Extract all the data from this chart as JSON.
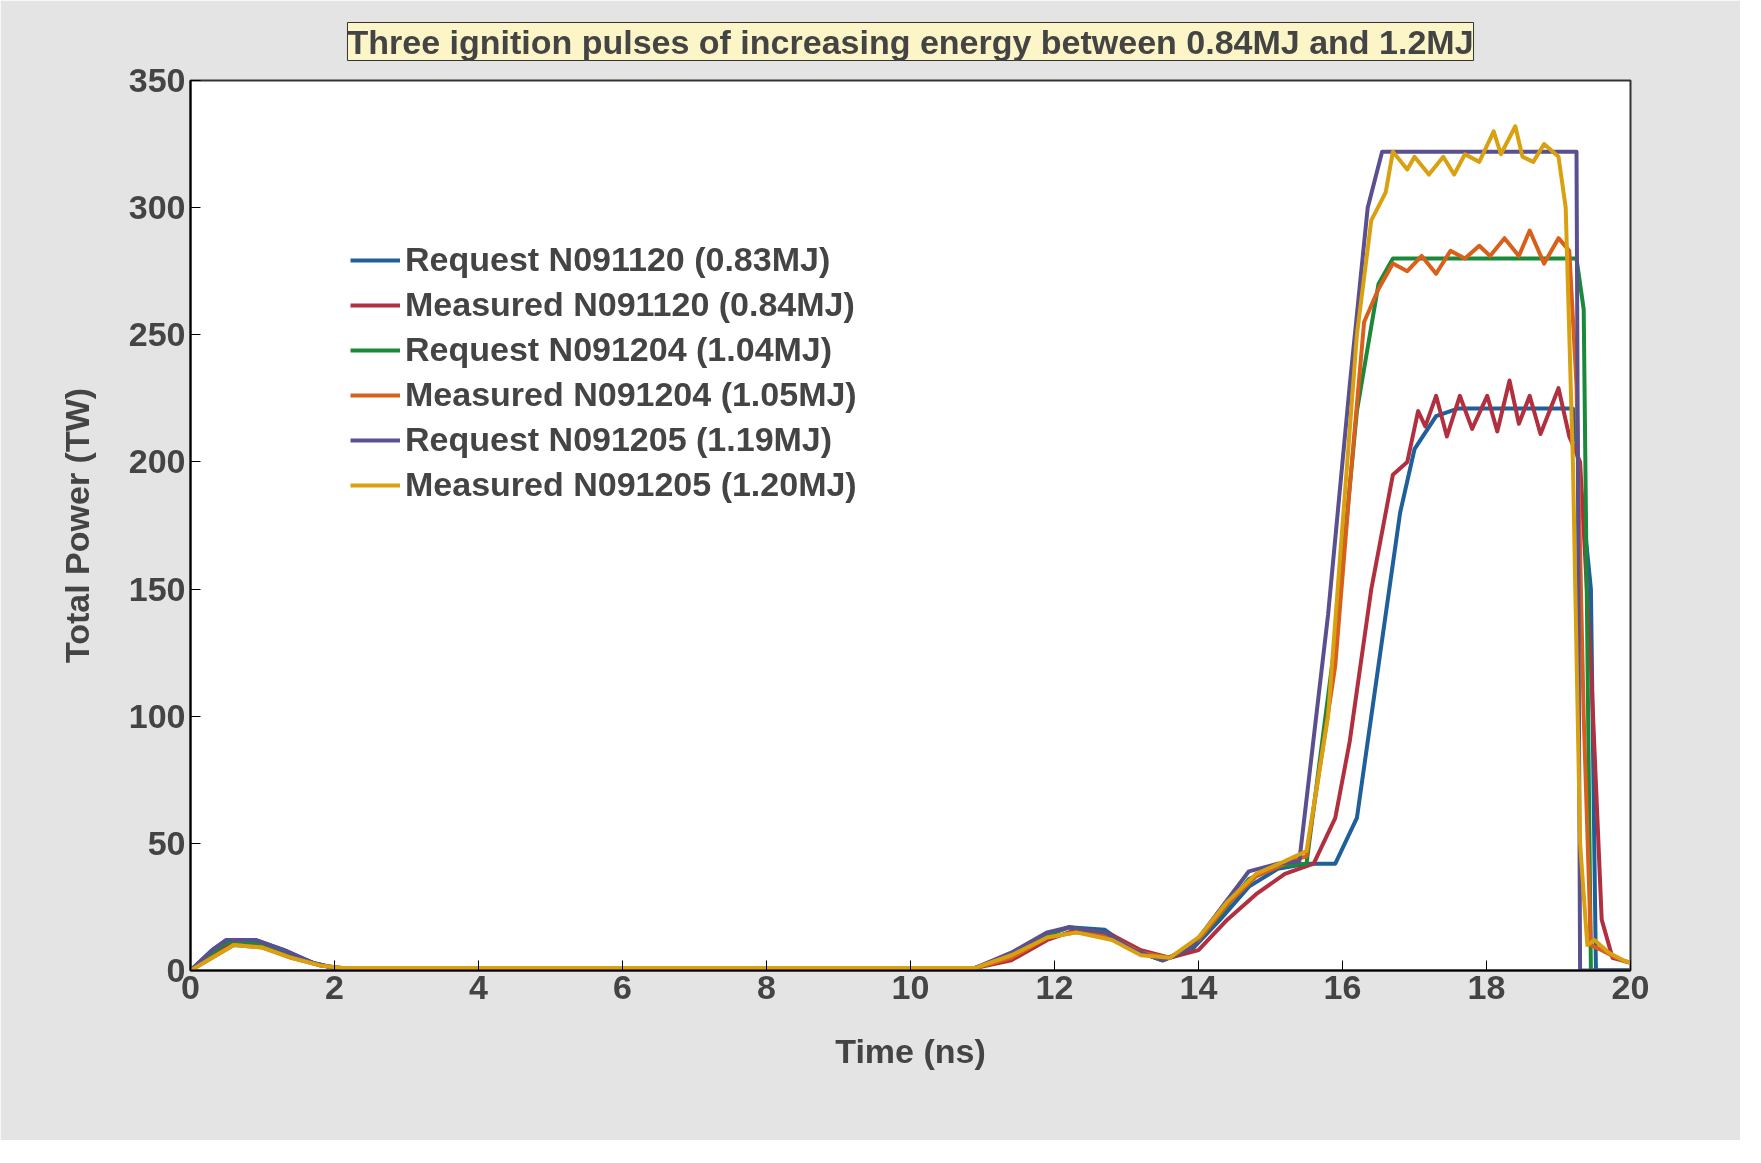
{
  "chart_data": {
    "type": "line",
    "title": "Three ignition pulses of increasing energy between 0.84MJ and 1.2MJ",
    "xlabel": "Time (ns)",
    "ylabel": "Total Power (TW)",
    "xlim": [
      0,
      20
    ],
    "ylim": [
      0,
      350
    ],
    "xticks": [
      0,
      2,
      4,
      6,
      8,
      10,
      12,
      14,
      16,
      18,
      20
    ],
    "yticks": [
      0,
      50,
      100,
      150,
      200,
      250,
      300,
      350
    ],
    "grid": false,
    "legend": "top left",
    "line_style": "solid",
    "marker": "none",
    "series": [
      {
        "name": "Request N091120 (0.83MJ)",
        "color": "#1f5f9a",
        "x": [
          0,
          0.3,
          0.5,
          0.9,
          1.3,
          1.7,
          2.0,
          10.9,
          11.4,
          11.9,
          12.2,
          12.7,
          13.1,
          13.5,
          13.9,
          14.3,
          14.7,
          15.1,
          15.5,
          15.9,
          16.2,
          16.5,
          16.8,
          17.0,
          17.3,
          17.6,
          19.2,
          19.45,
          19.52,
          20
        ],
        "values": [
          0,
          8,
          12,
          12,
          8,
          3,
          1,
          1,
          6,
          14,
          17,
          16,
          8,
          4,
          8,
          20,
          33,
          40,
          42,
          42,
          60,
          120,
          180,
          205,
          218,
          221,
          221,
          150,
          0,
          0
        ]
      },
      {
        "name": "Measured N091120 (0.84MJ)",
        "color": "#b03040",
        "x": [
          0,
          0.3,
          0.6,
          1.0,
          1.4,
          1.8,
          2.1,
          10.9,
          11.4,
          11.9,
          12.3,
          12.8,
          13.2,
          13.6,
          14.0,
          14.4,
          14.8,
          15.2,
          15.6,
          15.9,
          16.1,
          16.4,
          16.7,
          16.9,
          17.05,
          17.15,
          17.3,
          17.45,
          17.63,
          17.8,
          18.01,
          18.15,
          18.32,
          18.45,
          18.6,
          18.75,
          19.0,
          19.15,
          19.3,
          19.45,
          19.6,
          19.75,
          20
        ],
        "values": [
          0,
          6,
          11,
          10,
          6,
          2,
          1,
          1,
          4,
          12,
          16,
          14,
          8,
          5,
          8,
          20,
          30,
          38,
          42,
          60,
          90,
          150,
          195,
          200,
          220,
          214,
          226,
          210,
          226,
          213,
          226,
          212,
          232,
          215,
          226,
          211,
          229,
          210,
          200,
          120,
          20,
          5,
          3
        ]
      },
      {
        "name": "Request N091204 (1.04MJ)",
        "color": "#1a8a3a",
        "x": [
          0,
          0.3,
          0.5,
          0.9,
          1.3,
          1.7,
          2.0,
          10.9,
          11.4,
          11.9,
          12.2,
          12.7,
          13.1,
          13.5,
          13.9,
          14.3,
          14.7,
          15.1,
          15.5,
          15.9,
          16.2,
          16.5,
          16.7,
          19.25,
          19.35,
          19.45,
          20
        ],
        "values": [
          0,
          7,
          11,
          11,
          7,
          3,
          1,
          1,
          6,
          14,
          17,
          15,
          8,
          4,
          9,
          22,
          36,
          41,
          42,
          130,
          220,
          270,
          280,
          280,
          260,
          0,
          0
        ]
      },
      {
        "name": "Measured N091204 (1.05MJ)",
        "color": "#d9601a",
        "x": [
          0,
          0.3,
          0.6,
          1.0,
          1.4,
          1.8,
          2.1,
          10.9,
          11.4,
          11.9,
          12.3,
          12.8,
          13.2,
          13.6,
          14.0,
          14.4,
          14.8,
          15.2,
          15.5,
          15.9,
          16.1,
          16.3,
          16.5,
          16.7,
          16.9,
          17.1,
          17.3,
          17.5,
          17.7,
          17.9,
          18.05,
          18.25,
          18.45,
          18.6,
          18.8,
          19.0,
          19.15,
          19.25,
          19.35,
          19.45,
          19.6,
          19.8,
          20
        ],
        "values": [
          0,
          5,
          10,
          9,
          5,
          2,
          1,
          1,
          5,
          13,
          15,
          13,
          7,
          5,
          12,
          26,
          37,
          42,
          45,
          120,
          190,
          255,
          268,
          278,
          275,
          281,
          274,
          283,
          280,
          285,
          281,
          288,
          281,
          291,
          278,
          288,
          283,
          230,
          100,
          10,
          8,
          5,
          3
        ]
      },
      {
        "name": "Request N091205 (1.19MJ)",
        "color": "#5a4f8f",
        "x": [
          0,
          0.3,
          0.5,
          0.9,
          1.3,
          1.7,
          2.0,
          10.9,
          11.4,
          11.9,
          12.2,
          12.7,
          13.1,
          13.5,
          13.9,
          14.3,
          14.7,
          15.1,
          15.4,
          15.8,
          16.1,
          16.35,
          16.55,
          19.25,
          19.3,
          20
        ],
        "values": [
          0,
          8,
          12,
          12,
          8,
          3,
          1,
          1,
          7,
          15,
          17,
          15,
          8,
          4,
          9,
          24,
          39,
          42,
          43,
          140,
          230,
          300,
          322,
          322,
          0,
          0
        ]
      },
      {
        "name": "Measured N091205 (1.20MJ)",
        "color": "#d9a010",
        "x": [
          0,
          0.3,
          0.6,
          1.0,
          1.4,
          1.8,
          2.1,
          10.9,
          11.4,
          11.9,
          12.3,
          12.8,
          13.2,
          13.6,
          14.0,
          14.4,
          14.8,
          15.2,
          15.5,
          15.8,
          16.0,
          16.2,
          16.4,
          16.6,
          16.7,
          16.9,
          17.0,
          17.2,
          17.4,
          17.55,
          17.7,
          17.9,
          18.1,
          18.2,
          18.4,
          18.5,
          18.65,
          18.8,
          19.0,
          19.1,
          19.2,
          19.3,
          19.4,
          19.5,
          19.7,
          19.9,
          20
        ],
        "values": [
          0,
          5,
          10,
          9,
          5,
          2,
          1,
          1,
          6,
          13,
          15,
          12,
          6,
          5,
          13,
          27,
          38,
          43,
          47,
          100,
          175,
          250,
          295,
          306,
          322,
          315,
          320,
          313,
          320,
          313,
          321,
          318,
          330,
          321,
          332,
          320,
          318,
          325,
          320,
          300,
          200,
          50,
          10,
          12,
          7,
          4,
          3
        ]
      }
    ]
  }
}
